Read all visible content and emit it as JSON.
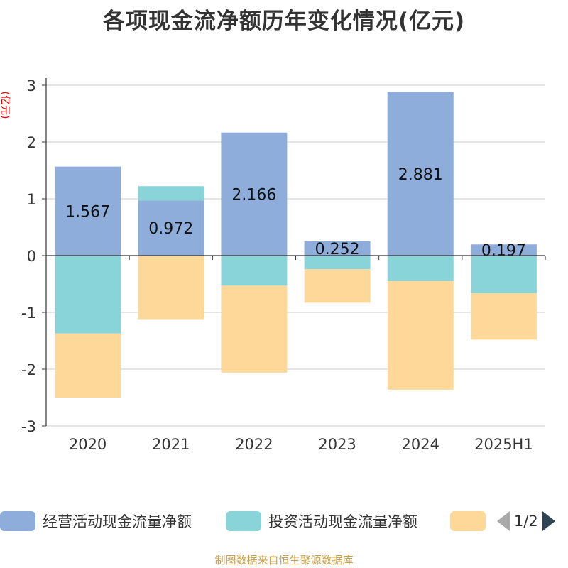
{
  "title": "各项现金流净额历年变化情况(亿元)",
  "y_unit": "(亿元)",
  "source": "制图数据来自恒生聚源数据库",
  "legend": {
    "items": [
      {
        "label": "经营活动现金流量净额",
        "color": "#8eadda"
      },
      {
        "label": "投资活动现金流量净额",
        "color": "#88d4d8"
      },
      {
        "label": "",
        "color": "#fdd899"
      }
    ],
    "page": "1/2",
    "prev_icon": "arrow-left-icon",
    "next_icon": "arrow-right-icon"
  },
  "chart_data": {
    "type": "bar",
    "stacked": true,
    "categories": [
      "2020",
      "2021",
      "2022",
      "2023",
      "2024",
      "2025H1"
    ],
    "ylim": [
      -3,
      3
    ],
    "yticks": [
      3,
      2,
      1,
      0,
      -1,
      -2,
      -3
    ],
    "grid": true,
    "legend_position": "bottom",
    "series": [
      {
        "name": "经营活动现金流量净额",
        "color": "#8eadda",
        "values": [
          1.567,
          0.972,
          2.166,
          0.252,
          2.881,
          0.197
        ],
        "labels": [
          "1.567",
          "0.972",
          "2.166",
          "0.252",
          "2.881",
          "0.197"
        ]
      },
      {
        "name": "投资活动现金流量净额",
        "color": "#88d4d8",
        "values": [
          -1.37,
          0.25,
          -0.53,
          -0.24,
          -0.45,
          -0.66
        ]
      },
      {
        "name": "",
        "color": "#fdd899",
        "values": [
          -1.13,
          -1.12,
          -1.53,
          -0.59,
          -1.91,
          -0.82
        ]
      }
    ]
  }
}
